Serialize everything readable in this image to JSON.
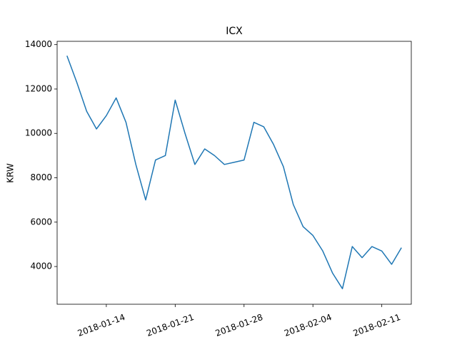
{
  "chart_data": {
    "type": "line",
    "title": "ICX",
    "y_label": "KRW",
    "x": [
      "2018-01-10",
      "2018-01-11",
      "2018-01-12",
      "2018-01-13",
      "2018-01-14",
      "2018-01-15",
      "2018-01-16",
      "2018-01-17",
      "2018-01-18",
      "2018-01-19",
      "2018-01-20",
      "2018-01-21",
      "2018-01-22",
      "2018-01-23",
      "2018-01-24",
      "2018-01-25",
      "2018-01-26",
      "2018-01-27",
      "2018-01-28",
      "2018-01-29",
      "2018-01-30",
      "2018-01-31",
      "2018-02-01",
      "2018-02-02",
      "2018-02-03",
      "2018-02-04",
      "2018-02-05",
      "2018-02-06",
      "2018-02-07",
      "2018-02-08",
      "2018-02-09",
      "2018-02-10",
      "2018-02-11",
      "2018-02-12",
      "2018-02-13"
    ],
    "series": [
      {
        "name": "ICX",
        "color": "#1f77b4",
        "values": [
          13500,
          12300,
          11000,
          10200,
          10800,
          11600,
          10500,
          8600,
          7000,
          8800,
          9000,
          11500,
          10000,
          8600,
          9300,
          9000,
          8600,
          8700,
          8800,
          10500,
          10300,
          9500,
          8500,
          6800,
          5800,
          5400,
          4700,
          3700,
          3000,
          4900,
          4400,
          4900,
          4700,
          4100,
          4850
        ]
      }
    ],
    "xlim": [
      "2018-01-09",
      "2018-02-14"
    ],
    "xticks": [
      "2018-01-14",
      "2018-01-21",
      "2018-01-28",
      "2018-02-04",
      "2018-02-11"
    ],
    "ylim": [
      2300,
      14150
    ],
    "yticks": [
      4000,
      6000,
      8000,
      10000,
      12000,
      14000
    ],
    "grid": false
  }
}
